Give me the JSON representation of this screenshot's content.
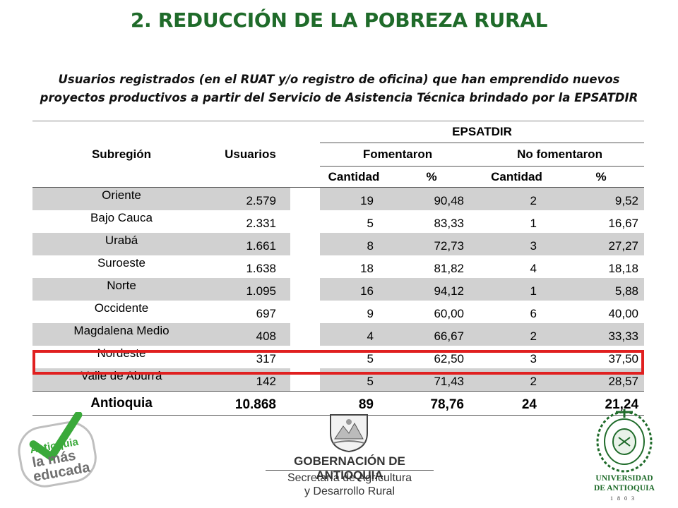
{
  "title": "2. REDUCCIÓN DE LA POBREZA RURAL",
  "subtitle_line1": "Usuarios registrados (en el RUAT y/o registro de oficina) que han emprendido nuevos",
  "subtitle_line2": "proyectos productivos a partir del Servicio de Asistencia Técnica brindado por la EPSATDIR",
  "table": {
    "header_subregion": "Subregión",
    "header_usuarios": "Usuarios",
    "header_group": "EPSATDIR",
    "header_fomentaron": "Fomentaron",
    "header_no_fomentaron": "No fomentaron",
    "header_cantidad": "Cantidad",
    "header_pct": "%",
    "rows": [
      {
        "subregion": "Oriente",
        "usuarios": "2.579",
        "fom_cant": "19",
        "fom_pct": "90,48",
        "nofom_cant": "2",
        "nofom_pct": "9,52"
      },
      {
        "subregion": "Bajo Cauca",
        "usuarios": "2.331",
        "fom_cant": "5",
        "fom_pct": "83,33",
        "nofom_cant": "1",
        "nofom_pct": "16,67"
      },
      {
        "subregion": "Urabá",
        "usuarios": "1.661",
        "fom_cant": "8",
        "fom_pct": "72,73",
        "nofom_cant": "3",
        "nofom_pct": "27,27"
      },
      {
        "subregion": "Suroeste",
        "usuarios": "1.638",
        "fom_cant": "18",
        "fom_pct": "81,82",
        "nofom_cant": "4",
        "nofom_pct": "18,18"
      },
      {
        "subregion": "Norte",
        "usuarios": "1.095",
        "fom_cant": "16",
        "fom_pct": "94,12",
        "nofom_cant": "1",
        "nofom_pct": "5,88"
      },
      {
        "subregion": "Occidente",
        "usuarios": "697",
        "fom_cant": "9",
        "fom_pct": "60,00",
        "nofom_cant": "6",
        "nofom_pct": "40,00"
      },
      {
        "subregion": "Magdalena Medio",
        "usuarios": "408",
        "fom_cant": "4",
        "fom_pct": "66,67",
        "nofom_cant": "2",
        "nofom_pct": "33,33"
      },
      {
        "subregion": "Nordeste",
        "usuarios": "317",
        "fom_cant": "5",
        "fom_pct": "62,50",
        "nofom_cant": "3",
        "nofom_pct": "37,50"
      },
      {
        "subregion": "Valle de Aburrá",
        "usuarios": "142",
        "fom_cant": "5",
        "fom_pct": "71,43",
        "nofom_cant": "2",
        "nofom_pct": "28,57"
      }
    ],
    "total": {
      "subregion": "Antioquia",
      "usuarios": "10.868",
      "fom_cant": "89",
      "fom_pct": "78,76",
      "nofom_cant": "24",
      "nofom_pct": "21,24"
    }
  },
  "logos": {
    "left_line1": "Antioquia",
    "left_line2": "la más",
    "left_line3": "educada",
    "gob_name": "GOBERNACIÓN DE ANTIOQUIA",
    "gob_sub1": "Secretaría de Agricultura",
    "gob_sub2": "y Desarrollo Rural",
    "udea_line1": "UNIVERSIDAD",
    "udea_line2": "DE ANTIOQUIA",
    "udea_year": "1803"
  },
  "colors": {
    "title_green": "#1f6b2a",
    "highlight_red": "#e02020",
    "row_shade": "#d1d1d1"
  }
}
